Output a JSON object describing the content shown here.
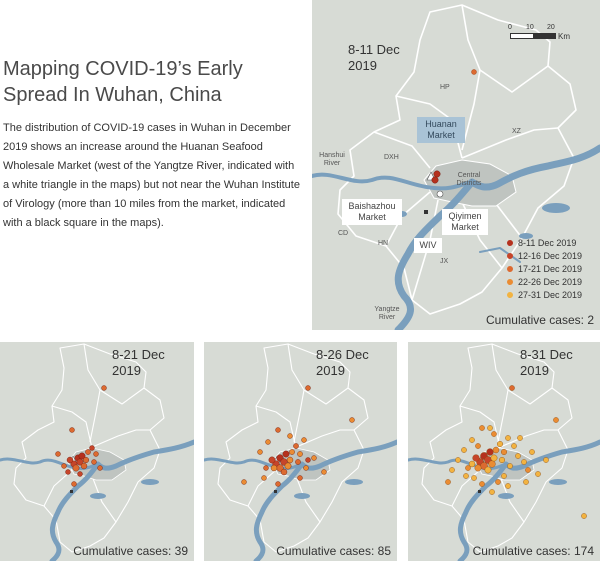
{
  "title": "Mapping COVID-19’s Early Spread In Wuhan, China",
  "description": "The distribution of COVID-19 cases in Wuhan in December 2019 shows an increase around the Huanan Seafood Wholesale Market (west of the Yangtze River, indicated with a white triangle in the maps) but not near the Wuhan Institute of Virology (more than 10 miles from the market, indicated with a black square in the maps).",
  "colors": {
    "land": "#d7dbd5",
    "river": "#7a9fbd",
    "central": "#bfc4c0",
    "borders": "#ffffff",
    "legend_box": "#a9c3d6"
  },
  "main_map": {
    "date": "8-11 Dec 2019",
    "cumulative": "Cumulative cases: 2",
    "scale": {
      "ticks": [
        "0",
        "10",
        "20"
      ],
      "unit": "Km"
    },
    "district_labels": [
      "HP",
      "XZ",
      "DXH",
      "CD",
      "HN",
      "JX"
    ],
    "river_labels": [
      "Hanshui River",
      "Yangtze River"
    ],
    "central_label": "Central Districts",
    "places": {
      "huanan": "Huanan Market",
      "baishazhou": "Baishazhou Market",
      "qiyimen": "Qiyimen Market",
      "wiv": "WIV"
    },
    "legend": [
      {
        "label": "8-11 Dec 2019",
        "color": "#b5311e"
      },
      {
        "label": "12-16 Dec 2019",
        "color": "#c6452a"
      },
      {
        "label": "17-21 Dec 2019",
        "color": "#dc6a30"
      },
      {
        "label": "22-26 Dec 2019",
        "color": "#ea8c33"
      },
      {
        "label": "27-31 Dec 2019",
        "color": "#f2b341"
      }
    ]
  },
  "panels": [
    {
      "date": "8-21 Dec 2019",
      "cumulative": "Cumulative cases: 39"
    },
    {
      "date": "8-26 Dec 2019",
      "cumulative": "Cumulative cases: 85"
    },
    {
      "date": "8-31 Dec 2019",
      "cumulative": "Cumulative cases: 174"
    }
  ]
}
